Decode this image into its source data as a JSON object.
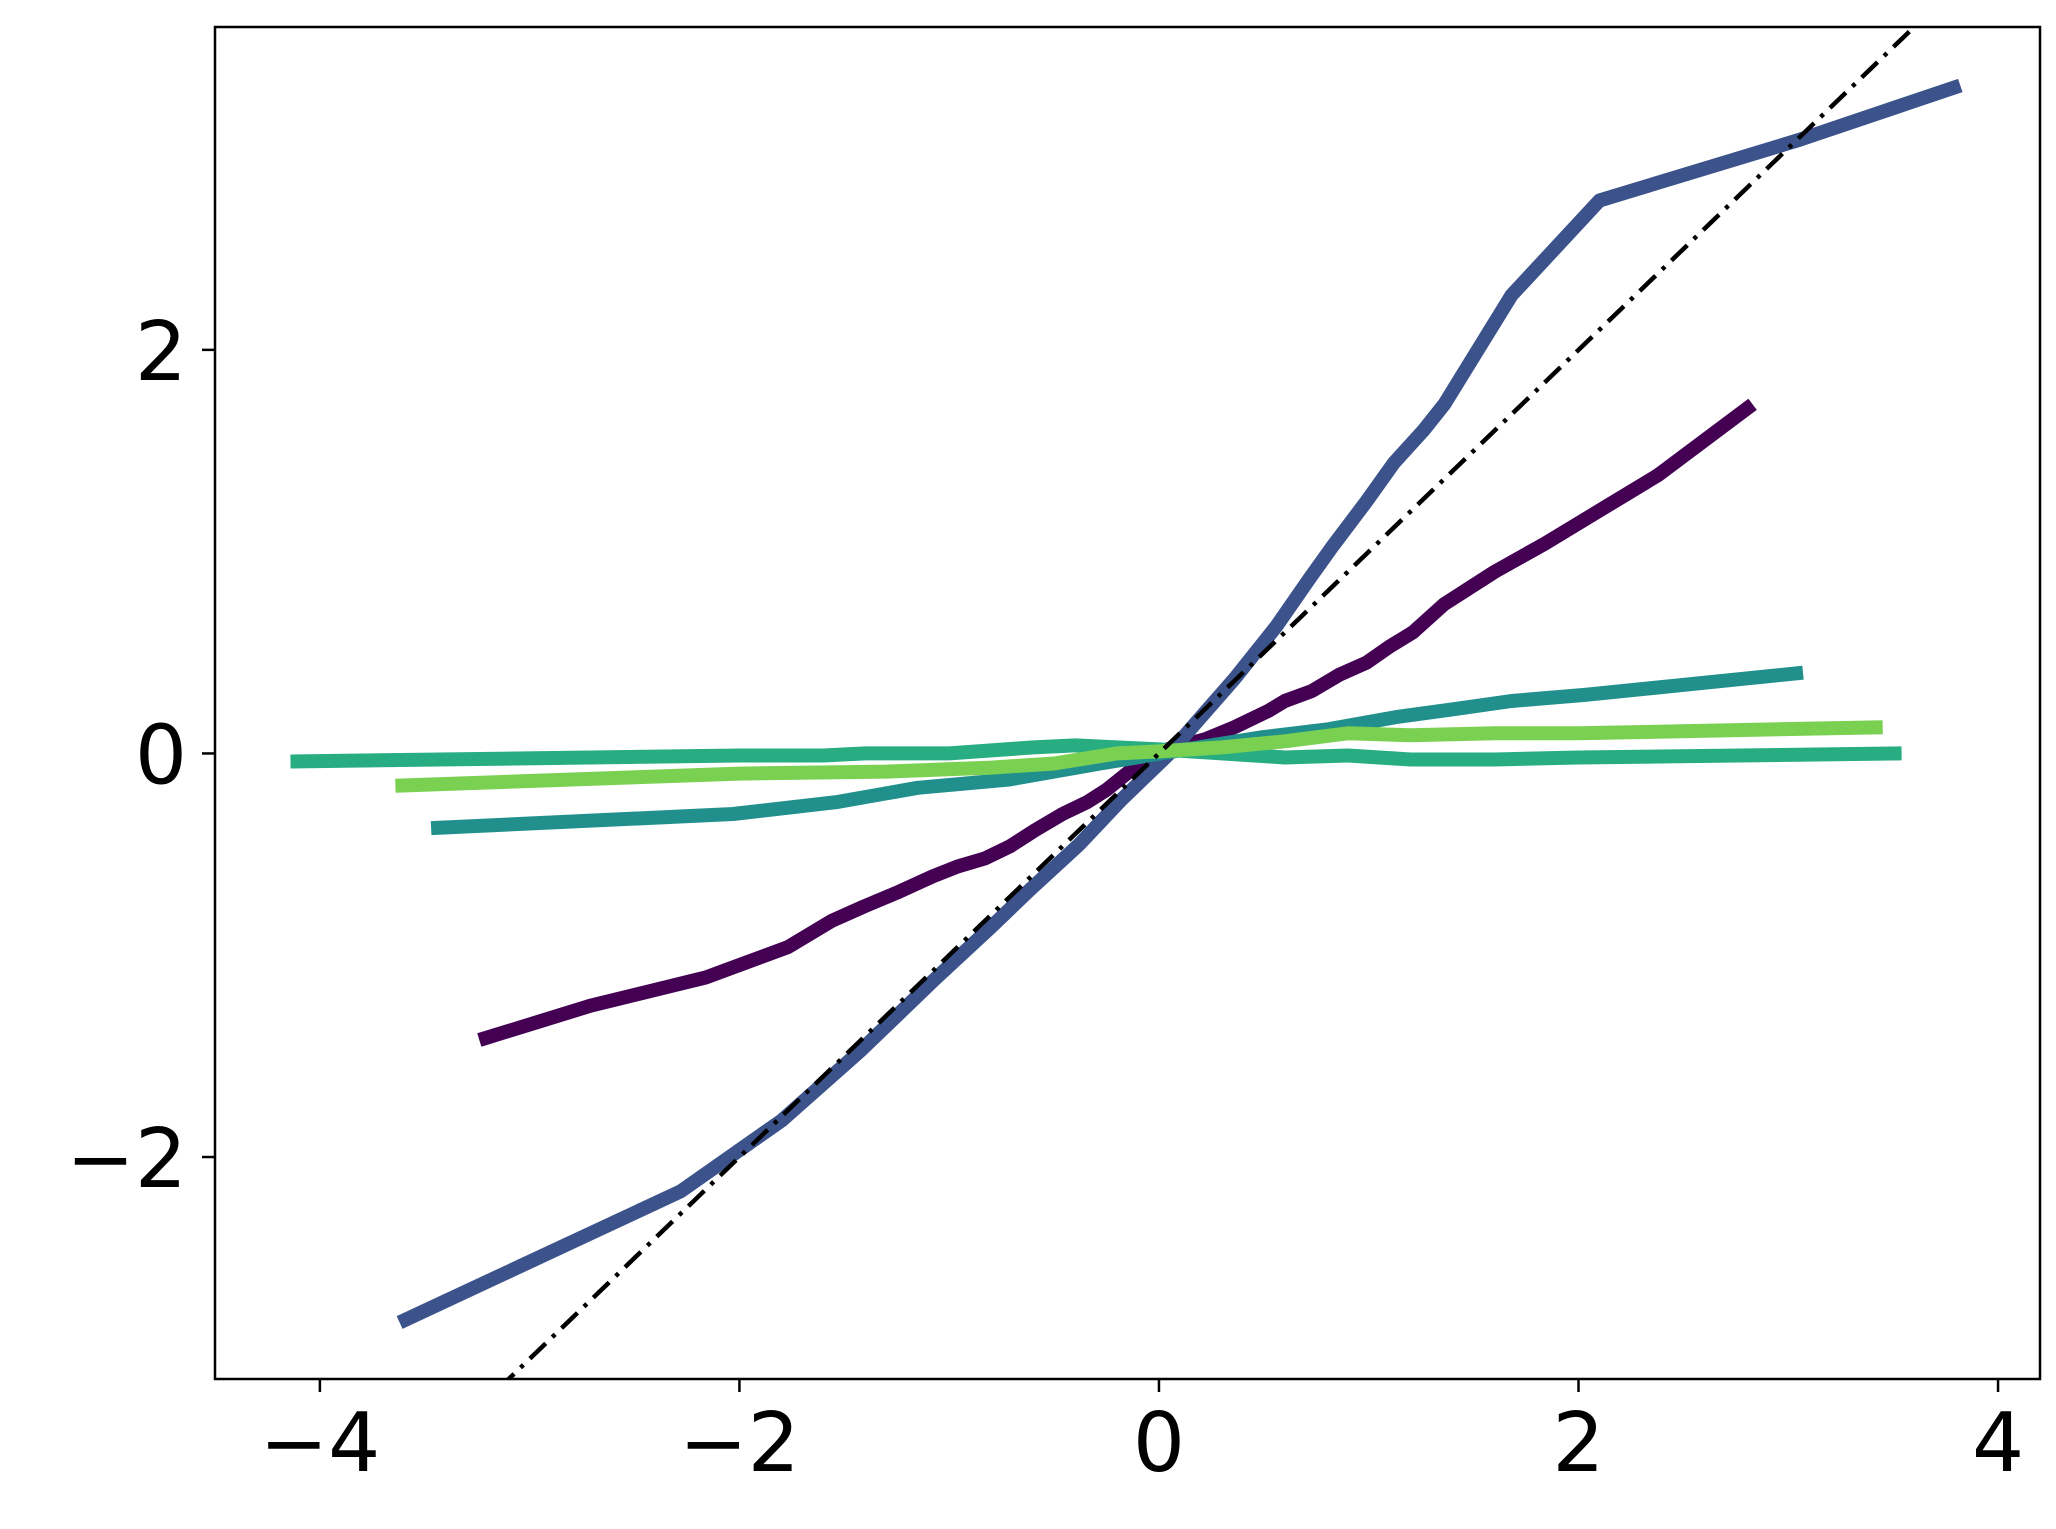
{
  "chart_data": {
    "type": "line",
    "title": "",
    "xlabel": "",
    "ylabel": "",
    "xlim": [
      -4.5,
      4.2
    ],
    "ylim": [
      -3.1,
      3.6
    ],
    "grid": false,
    "legend": "none",
    "x_ticks": [
      {
        "value": -4,
        "label": "−4"
      },
      {
        "value": -2,
        "label": "−2"
      },
      {
        "value": 0,
        "label": "0"
      },
      {
        "value": 2,
        "label": "2"
      },
      {
        "value": 4,
        "label": "4"
      }
    ],
    "y_ticks": [
      {
        "value": -2,
        "label": "−2"
      },
      {
        "value": 0,
        "label": "0"
      },
      {
        "value": 2,
        "label": "2"
      }
    ],
    "reference_line": {
      "style": "dash-dot",
      "color": "#000000",
      "x": [
        -3.15,
        3.65
      ],
      "y": [
        -3.15,
        3.65
      ]
    },
    "series": [
      {
        "color": "#440154",
        "x": [
          -3.24,
          -2.71,
          -2.16,
          -1.77,
          -1.56,
          -1.41,
          -1.25,
          -1.08,
          -0.96,
          -0.83,
          -0.71,
          -0.59,
          -0.46,
          -0.34,
          -0.25,
          -0.13,
          0.04,
          0.22,
          0.36,
          0.52,
          0.6,
          0.73,
          0.86,
          0.99,
          1.1,
          1.21,
          1.36,
          1.6,
          1.84,
          2.11,
          2.38,
          2.83
        ],
        "y": [
          -1.42,
          -1.25,
          -1.11,
          -0.96,
          -0.83,
          -0.76,
          -0.69,
          -0.61,
          -0.56,
          -0.52,
          -0.46,
          -0.38,
          -0.3,
          -0.24,
          -0.18,
          -0.08,
          0.02,
          0.07,
          0.13,
          0.21,
          0.26,
          0.31,
          0.39,
          0.45,
          0.53,
          0.6,
          0.74,
          0.9,
          1.04,
          1.21,
          1.38,
          1.73
        ]
      },
      {
        "color": "#3b528b",
        "x": [
          -3.62,
          -2.28,
          -1.8,
          -1.42,
          -1.07,
          -0.8,
          -0.62,
          -0.38,
          -0.18,
          0.04,
          0.2,
          0.36,
          0.56,
          0.72,
          0.83,
          0.99,
          1.12,
          1.26,
          1.36,
          1.68,
          2.1,
          3.05,
          3.82
        ],
        "y": [
          -2.82,
          -2.17,
          -1.82,
          -1.47,
          -1.12,
          -0.86,
          -0.68,
          -0.45,
          -0.23,
          -0.01,
          0.18,
          0.37,
          0.63,
          0.87,
          1.03,
          1.25,
          1.44,
          1.6,
          1.73,
          2.27,
          2.74,
          3.04,
          3.31
        ]
      },
      {
        "color": "#21908d",
        "x": [
          -3.47,
          -2.03,
          -1.53,
          -1.15,
          -0.72,
          -0.28,
          0.01,
          0.49,
          0.81,
          1.13,
          1.41,
          1.68,
          2.03,
          3.07
        ],
        "y": [
          -0.37,
          -0.3,
          -0.24,
          -0.17,
          -0.13,
          -0.05,
          0.0,
          0.08,
          0.12,
          0.18,
          0.22,
          0.26,
          0.29,
          0.4
        ]
      },
      {
        "color": "#27ad81",
        "x": [
          -4.14,
          -2.0,
          -1.6,
          -1.4,
          -1.0,
          -0.6,
          -0.4,
          -0.2,
          0.0,
          0.3,
          0.6,
          0.9,
          1.2,
          1.6,
          2.0,
          3.54
        ],
        "y": [
          -0.04,
          -0.01,
          -0.01,
          0.0,
          0.0,
          0.03,
          0.04,
          0.03,
          0.02,
          0.0,
          -0.02,
          -0.01,
          -0.03,
          -0.03,
          -0.02,
          0.0
        ]
      },
      {
        "color": "#7ad151",
        "x": [
          -3.64,
          -2.0,
          -1.3,
          -0.8,
          -0.5,
          -0.2,
          0.0,
          0.3,
          0.6,
          0.9,
          1.2,
          1.6,
          2.0,
          3.45
        ],
        "y": [
          -0.16,
          -0.1,
          -0.09,
          -0.07,
          -0.05,
          0.0,
          0.01,
          0.03,
          0.06,
          0.1,
          0.09,
          0.1,
          0.1,
          0.13
        ]
      }
    ]
  }
}
